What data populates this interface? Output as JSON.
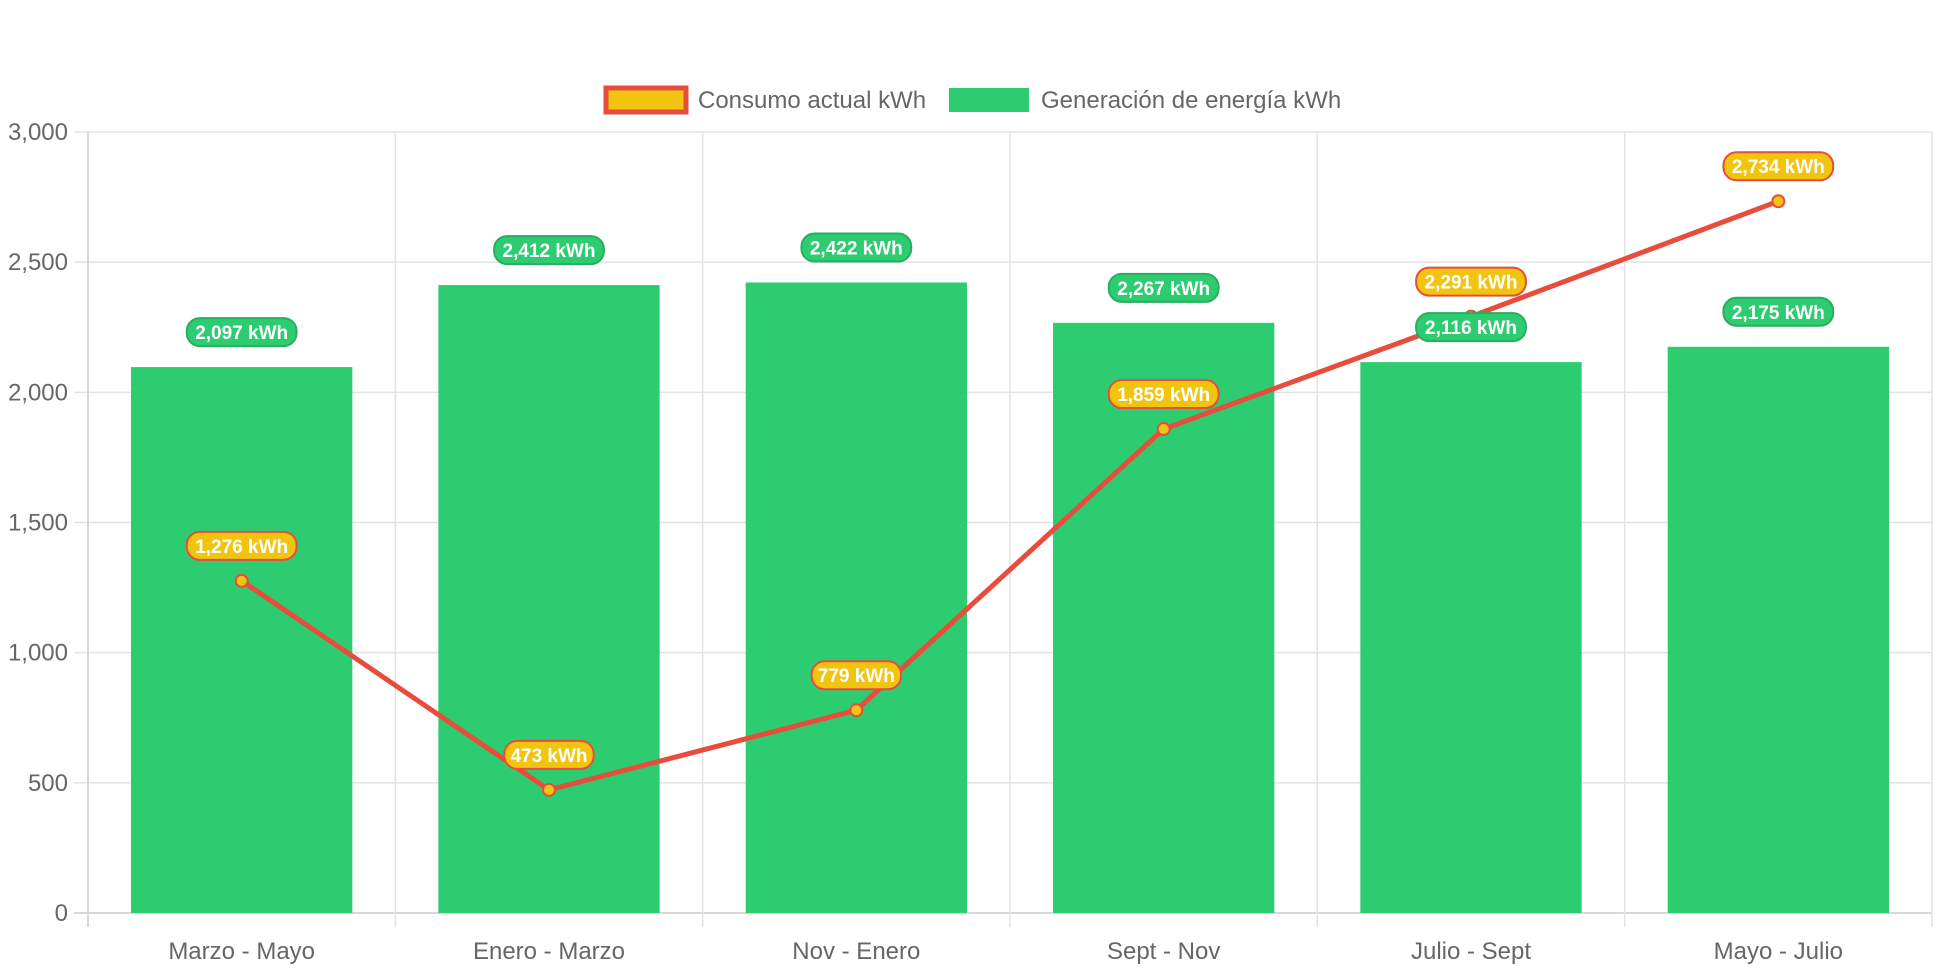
{
  "chart_data": {
    "type": "bar",
    "categories": [
      "Marzo - Mayo",
      "Enero - Marzo",
      "Nov - Enero",
      "Sept - Nov",
      "Julio - Sept",
      "Mayo - Julio"
    ],
    "ylim": [
      0,
      3000
    ],
    "ytick_values": [
      0,
      500,
      1000,
      1500,
      2000,
      2500,
      3000
    ],
    "ytick_labels": [
      "0",
      "500",
      "1,000",
      "1,500",
      "2,000",
      "2,500",
      "3,000"
    ],
    "grid": true,
    "legend_position": "top-center",
    "series": [
      {
        "name": "Consumo actual kWh",
        "type": "line",
        "values": [
          1276,
          473,
          779,
          1859,
          2291,
          2734
        ],
        "labels": [
          "1,276 kWh",
          "473 kWh",
          "779 kWh",
          "1,859 kWh",
          "2,291 kWh",
          "2,734 kWh"
        ],
        "line_color": "#e74c3c",
        "point_color": "#f1c40f"
      },
      {
        "name": "Generación de energía kWh",
        "type": "bar",
        "values": [
          2097,
          2412,
          2422,
          2267,
          2116,
          2175
        ],
        "labels": [
          "2,097 kWh",
          "2,412 kWh",
          "2,422 kWh",
          "2,267 kWh",
          "2,116 kWh",
          "2,175 kWh"
        ],
        "bar_color": "#2ecc71",
        "border_color": "#27ae60"
      }
    ]
  }
}
